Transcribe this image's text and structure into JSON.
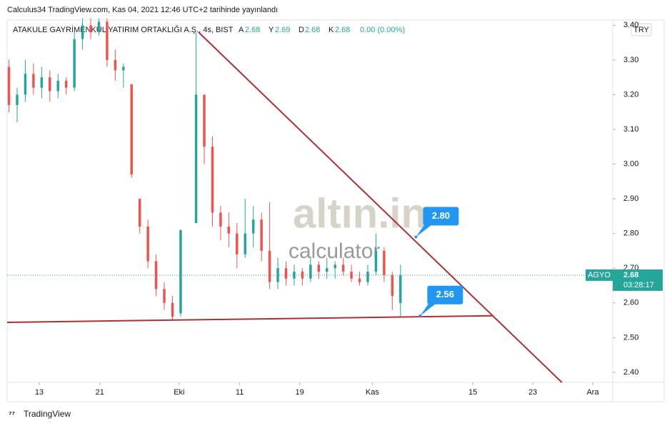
{
  "header": {
    "published": "Calculus34 TradingView.com, Kas 04, 2021 12:46 UTC+2 tarihinde yayınlandı",
    "symbol": "ATAKULE GAYRİMENKUL YATIRIM ORTAKLIĞI A.Ş., 4s, BIST",
    "ohlc": [
      {
        "key": "A",
        "value": "2.68"
      },
      {
        "key": "Y",
        "value": "2.69"
      },
      {
        "key": "D",
        "value": "2.68"
      },
      {
        "key": "K",
        "value": "2.68"
      }
    ],
    "change": "0.00 (0.00%)",
    "currency": "TRY"
  },
  "watermark": {
    "brand": "altın.in",
    "sub": "calculator"
  },
  "footer": "TradingView",
  "chart_data": {
    "type": "candlestick",
    "up_color": "#26a69a",
    "down_color": "#ef5350",
    "line_color": "#b03030",
    "x": [
      0.3,
      1.65,
      3.0,
      4.35,
      5.7,
      7.05,
      8.4,
      9.75,
      11.1,
      12.45,
      13.8,
      15.15,
      16.5,
      17.85,
      19.2,
      20.55,
      21.9,
      23.25,
      24.6,
      25.95,
      27.3,
      28.65,
      31.2,
      32.55,
      33.9,
      35.25,
      36.6,
      37.95,
      39.3,
      40.65,
      42.0,
      43.35,
      44.7,
      46.05,
      47.4,
      48.75,
      50.1,
      51.45,
      52.8,
      54.15,
      55.5,
      56.85,
      58.2,
      59.55,
      60.9,
      62.25,
      63.6,
      64.95
    ],
    "open": [
      3.28,
      3.17,
      3.2,
      3.26,
      3.22,
      3.25,
      3.21,
      3.24,
      3.22,
      3.36,
      3.4,
      3.38,
      3.41,
      3.3,
      3.27,
      3.23,
      2.9,
      2.82,
      2.72,
      2.64,
      2.6,
      2.57,
      2.83,
      3.2,
      3.05,
      2.86,
      2.82,
      2.8,
      2.74,
      2.8,
      2.84,
      2.75,
      2.66,
      2.7,
      2.67,
      2.69,
      2.67,
      2.71,
      2.69,
      2.7,
      2.71,
      2.69,
      2.67,
      2.66,
      2.69,
      2.75,
      2.68,
      2.6
    ],
    "high": [
      3.3,
      3.22,
      3.3,
      3.29,
      3.28,
      3.27,
      3.26,
      3.25,
      3.38,
      3.42,
      3.42,
      3.42,
      3.42,
      3.33,
      3.29,
      3.23,
      2.9,
      2.84,
      2.74,
      2.66,
      2.62,
      2.81,
      3.38,
      3.2,
      3.08,
      2.88,
      2.86,
      2.83,
      2.9,
      2.88,
      2.86,
      2.89,
      2.73,
      2.72,
      2.71,
      2.7,
      2.73,
      2.72,
      2.73,
      2.72,
      2.73,
      2.71,
      2.69,
      2.71,
      2.8,
      2.76,
      2.69,
      2.71
    ],
    "low": [
      3.15,
      3.12,
      3.18,
      3.2,
      3.19,
      3.18,
      3.19,
      3.2,
      3.21,
      3.33,
      3.36,
      3.37,
      3.28,
      3.24,
      3.22,
      2.96,
      2.8,
      2.7,
      2.62,
      2.58,
      2.55,
      2.56,
      2.83,
      3.0,
      2.82,
      2.78,
      2.76,
      2.7,
      2.73,
      2.76,
      2.72,
      2.64,
      2.64,
      2.65,
      2.65,
      2.65,
      2.66,
      2.67,
      2.67,
      2.67,
      2.68,
      2.66,
      2.65,
      2.65,
      2.68,
      2.66,
      2.58,
      2.56
    ],
    "close": [
      3.17,
      3.2,
      3.26,
      3.22,
      3.25,
      3.21,
      3.24,
      3.22,
      3.36,
      3.4,
      3.38,
      3.41,
      3.3,
      3.27,
      3.28,
      2.97,
      2.82,
      2.72,
      2.64,
      2.6,
      2.56,
      2.81,
      3.2,
      3.05,
      2.86,
      2.82,
      2.8,
      2.74,
      2.8,
      2.84,
      2.75,
      2.66,
      2.7,
      2.67,
      2.69,
      2.67,
      2.71,
      2.69,
      2.7,
      2.71,
      2.69,
      2.67,
      2.66,
      2.69,
      2.75,
      2.68,
      2.62,
      2.68
    ],
    "xlim": [
      0,
      100
    ],
    "xticks": [
      {
        "value": 5.3,
        "label": "13"
      },
      {
        "value": 15.3,
        "label": "21"
      },
      {
        "value": 28.4,
        "label": "Eki"
      },
      {
        "value": 38.4,
        "label": "11"
      },
      {
        "value": 48.3,
        "label": "19"
      },
      {
        "value": 60.3,
        "label": "Kas"
      },
      {
        "value": 76.9,
        "label": "15"
      },
      {
        "value": 86.8,
        "label": "23"
      },
      {
        "value": 96.7,
        "label": "Ara"
      }
    ],
    "ylim": [
      2.371,
      3.415
    ],
    "yticks": [
      {
        "value": 2.4,
        "label": "2.40"
      },
      {
        "value": 2.5,
        "label": "2.50"
      },
      {
        "value": 2.6,
        "label": "2.60"
      },
      {
        "value": 2.7,
        "label": "2.70"
      },
      {
        "value": 2.8,
        "label": "2.80"
      },
      {
        "value": 2.9,
        "label": "2.90"
      },
      {
        "value": 3.0,
        "label": "3.00"
      },
      {
        "value": 3.1,
        "label": "3.10"
      },
      {
        "value": 3.2,
        "label": "3.20"
      },
      {
        "value": 3.3,
        "label": "3.30"
      },
      {
        "value": 3.4,
        "label": "3.40"
      }
    ],
    "trendlines": [
      {
        "x": [
          31.6,
          91.6
        ],
        "y": [
          3.38,
          2.371
        ]
      },
      {
        "x": [
          0,
          80.2
        ],
        "y": [
          2.544,
          2.563
        ]
      }
    ],
    "annotations": [
      {
        "text": "2.80",
        "x": 67.5,
        "y": 2.79
      },
      {
        "text": "2.56",
        "x": 68.2,
        "y": 2.563
      }
    ],
    "last_price": {
      "label": "AGYO",
      "value": 2.68,
      "countdown": "03:28:17"
    }
  }
}
